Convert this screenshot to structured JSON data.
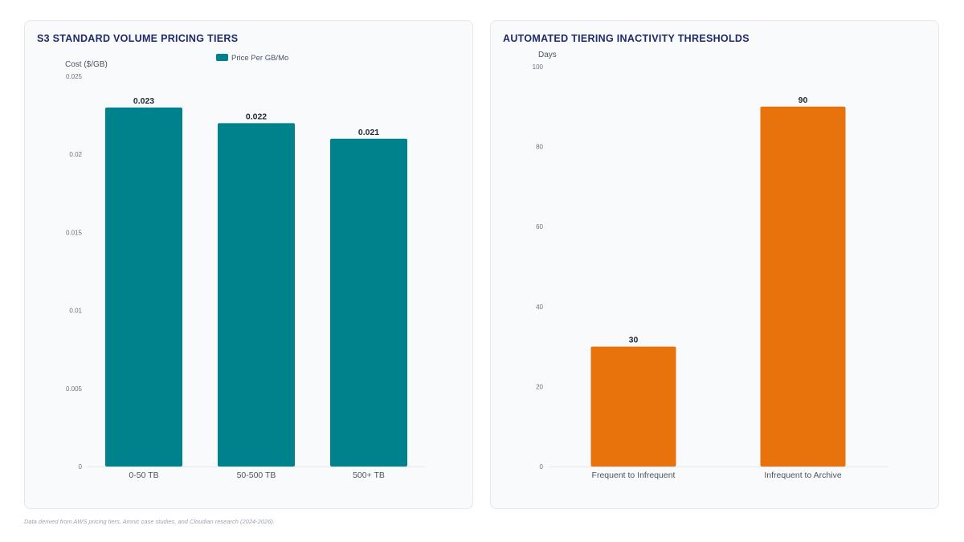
{
  "footnote": "Data derived from AWS pricing tiers, Amnic case studies, and Cloudian research (2024-2026).",
  "chart_data": [
    {
      "type": "bar",
      "title": "S3 STANDARD VOLUME PRICING TIERS",
      "ylabel": "Cost ($/GB)",
      "xlabel": "",
      "categories": [
        "0-50 TB",
        "50-500 TB",
        "500+ TB"
      ],
      "series": [
        {
          "name": "Price Per GB/Mo",
          "values": [
            0.023,
            0.022,
            0.021
          ]
        }
      ],
      "value_labels": [
        "0.023",
        "0.022",
        "0.021"
      ],
      "ylim": [
        0,
        0.025
      ],
      "yticks": [
        0,
        0.005,
        0.01,
        0.015,
        0.02,
        0.025
      ],
      "ytick_labels": [
        "0",
        "0.005",
        "0.01",
        "0.015",
        "0.02",
        "0.025"
      ],
      "legend": "top-center",
      "grid": false,
      "color": "#00828c"
    },
    {
      "type": "bar",
      "title": "AUTOMATED TIERING INACTIVITY THRESHOLDS",
      "ylabel": "Days",
      "xlabel": "",
      "categories": [
        "Frequent to Infrequent",
        "Infrequent to Archive"
      ],
      "series": [
        {
          "values": [
            30,
            90
          ]
        }
      ],
      "value_labels": [
        "30",
        "90"
      ],
      "ylim": [
        0,
        100
      ],
      "yticks": [
        0,
        20,
        40,
        60,
        80,
        100
      ],
      "ytick_labels": [
        "0",
        "20",
        "40",
        "60",
        "80",
        "100"
      ],
      "legend": "none",
      "grid": false,
      "color": "#e8720c"
    }
  ]
}
